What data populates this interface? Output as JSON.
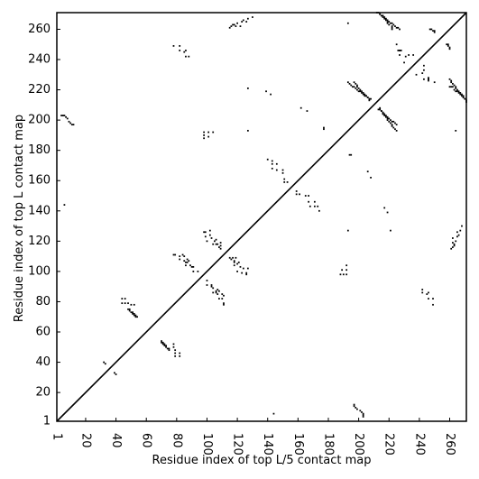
{
  "chart_data": {
    "type": "scatter",
    "title": "",
    "xlabel": "Residue index of top L/5 contact map",
    "ylabel": "Residue index of top L contact map",
    "xlim": [
      1,
      271
    ],
    "ylim": [
      1,
      271
    ],
    "xticks": [
      1,
      20,
      40,
      60,
      80,
      100,
      120,
      140,
      160,
      180,
      200,
      220,
      240,
      260
    ],
    "yticks": [
      1,
      20,
      40,
      60,
      80,
      100,
      120,
      140,
      160,
      180,
      200,
      220,
      240,
      260
    ],
    "x_tick_rotation_deg": -90,
    "grid": false,
    "legend": "none",
    "diagonal_line": true,
    "colors": {
      "points": "#000000",
      "axes": "#000000",
      "background": "#ffffff"
    },
    "upper_left_points": [
      [
        4,
        203
      ],
      [
        5,
        203
      ],
      [
        6,
        203
      ],
      [
        7,
        202
      ],
      [
        8,
        201
      ],
      [
        9,
        199
      ],
      [
        10,
        198
      ],
      [
        11,
        197
      ],
      [
        12,
        197
      ],
      [
        6,
        144
      ],
      [
        32,
        40
      ],
      [
        33,
        39
      ],
      [
        44,
        82
      ],
      [
        44,
        79
      ],
      [
        46,
        82
      ],
      [
        46,
        79
      ],
      [
        48,
        79
      ],
      [
        48,
        75
      ],
      [
        49,
        75
      ],
      [
        49,
        74
      ],
      [
        50,
        73
      ],
      [
        51,
        73
      ],
      [
        51,
        72
      ],
      [
        52,
        72
      ],
      [
        52,
        71
      ],
      [
        53,
        71
      ],
      [
        53,
        70
      ],
      [
        54,
        70
      ],
      [
        50,
        78
      ],
      [
        52,
        78
      ],
      [
        78,
        111
      ],
      [
        79,
        111
      ],
      [
        82,
        110
      ],
      [
        82,
        108
      ],
      [
        84,
        111
      ],
      [
        85,
        110
      ],
      [
        85,
        107
      ],
      [
        86,
        104
      ],
      [
        88,
        107
      ],
      [
        89,
        104
      ],
      [
        90,
        103
      ],
      [
        91,
        100
      ],
      [
        98,
        126
      ],
      [
        99,
        126
      ],
      [
        99,
        123
      ],
      [
        100,
        120
      ],
      [
        102,
        127
      ],
      [
        102,
        124
      ],
      [
        103,
        122
      ],
      [
        104,
        118
      ],
      [
        105,
        120
      ],
      [
        106,
        118
      ],
      [
        107,
        118
      ],
      [
        108,
        116
      ],
      [
        109,
        119
      ],
      [
        100,
        94
      ],
      [
        103,
        91
      ],
      [
        106,
        87
      ],
      [
        106,
        86
      ],
      [
        108,
        87
      ],
      [
        115,
        109
      ],
      [
        117,
        109
      ],
      [
        121,
        106
      ],
      [
        78,
        249
      ],
      [
        82,
        249
      ],
      [
        82,
        246
      ],
      [
        85,
        245
      ],
      [
        86,
        246
      ],
      [
        86,
        242
      ],
      [
        88,
        242
      ],
      [
        98,
        192
      ],
      [
        98,
        190
      ],
      [
        98,
        188
      ],
      [
        101,
        192
      ],
      [
        101,
        189
      ],
      [
        104,
        192
      ],
      [
        115,
        261
      ],
      [
        116,
        262
      ],
      [
        117,
        263
      ],
      [
        118,
        263
      ],
      [
        119,
        262
      ],
      [
        120,
        264
      ],
      [
        122,
        262
      ],
      [
        123,
        265
      ],
      [
        124,
        266
      ],
      [
        126,
        265
      ],
      [
        127,
        267
      ],
      [
        130,
        268
      ],
      [
        127,
        221
      ],
      [
        127,
        193
      ],
      [
        139,
        219
      ],
      [
        142,
        217
      ],
      [
        140,
        174
      ],
      [
        143,
        173
      ],
      [
        143,
        171
      ],
      [
        143,
        168
      ],
      [
        146,
        171
      ],
      [
        146,
        167
      ],
      [
        150,
        167
      ],
      [
        150,
        165
      ],
      [
        151,
        161
      ],
      [
        151,
        159
      ],
      [
        153,
        159
      ],
      [
        162,
        208
      ],
      [
        166,
        206
      ],
      [
        177,
        195
      ],
      [
        177,
        194
      ],
      [
        193,
        264
      ],
      [
        193,
        225
      ],
      [
        194,
        224
      ],
      [
        195,
        223
      ],
      [
        196,
        222
      ],
      [
        197,
        222
      ],
      [
        198,
        221
      ],
      [
        199,
        220
      ],
      [
        200,
        219
      ],
      [
        201,
        219
      ],
      [
        202,
        218
      ],
      [
        203,
        217
      ],
      [
        204,
        216
      ],
      [
        205,
        216
      ],
      [
        206,
        215
      ],
      [
        207,
        214
      ],
      [
        208,
        214
      ],
      [
        213,
        207
      ],
      [
        214,
        207
      ],
      [
        215,
        206
      ],
      [
        216,
        205
      ],
      [
        217,
        204
      ],
      [
        218,
        203
      ],
      [
        219,
        202
      ],
      [
        220,
        201
      ],
      [
        221,
        200
      ],
      [
        222,
        199
      ],
      [
        223,
        199
      ],
      [
        224,
        198
      ],
      [
        225,
        197
      ],
      [
        212,
        271
      ],
      [
        213,
        271
      ],
      [
        214,
        270
      ],
      [
        215,
        269
      ],
      [
        216,
        269
      ],
      [
        217,
        268
      ],
      [
        218,
        267
      ],
      [
        219,
        266
      ],
      [
        220,
        265
      ],
      [
        221,
        264
      ],
      [
        222,
        264
      ],
      [
        223,
        263
      ],
      [
        224,
        262
      ],
      [
        225,
        261
      ],
      [
        226,
        261
      ],
      [
        227,
        260
      ],
      [
        225,
        250
      ],
      [
        226,
        246
      ],
      [
        227,
        246
      ],
      [
        228,
        246
      ],
      [
        230,
        238
      ],
      [
        231,
        242
      ],
      [
        233,
        243
      ],
      [
        236,
        243
      ],
      [
        243,
        227
      ],
      [
        246,
        227
      ],
      [
        247,
        260
      ],
      [
        248,
        260
      ],
      [
        249,
        259
      ],
      [
        250,
        258
      ],
      [
        259,
        250
      ],
      [
        260,
        222
      ],
      [
        261,
        222
      ],
      [
        262,
        222
      ],
      [
        263,
        220
      ],
      [
        264,
        219
      ],
      [
        265,
        219
      ],
      [
        266,
        218
      ],
      [
        267,
        217
      ],
      [
        268,
        216
      ],
      [
        269,
        215
      ],
      [
        270,
        214
      ]
    ]
  }
}
